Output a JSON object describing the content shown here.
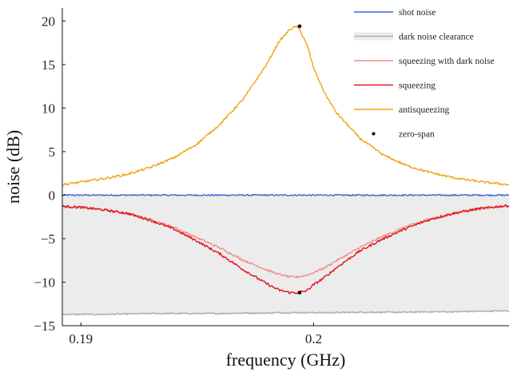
{
  "chart_data": {
    "type": "line",
    "xlabel": "frequency (GHz)",
    "ylabel": "noise (dB)",
    "xlim": [
      0.1892,
      0.2084
    ],
    "ylim": [
      -15,
      21.5
    ],
    "x_ticks": [
      0.19,
      0.2
    ],
    "x_tick_labels": [
      "0.19",
      "0.2"
    ],
    "y_ticks": [
      -15,
      -10,
      -5,
      0,
      5,
      10,
      15,
      20
    ],
    "y_tick_labels": [
      "−15",
      "−10",
      "−5",
      "0",
      "5",
      "10",
      "15",
      "20"
    ],
    "grid": false,
    "legend_position": "top-right",
    "x": [
      0.1892,
      0.19,
      0.191,
      0.192,
      0.193,
      0.194,
      0.195,
      0.196,
      0.197,
      0.198,
      0.1985,
      0.199,
      0.1993,
      0.1995,
      0.1997,
      0.2,
      0.2005,
      0.201,
      0.202,
      0.203,
      0.204,
      0.205,
      0.206,
      0.207,
      0.208,
      0.2084
    ],
    "series": [
      {
        "name": "shot noise",
        "color": "#3a63d8",
        "values": [
          0.0,
          0.0,
          0.0,
          0.0,
          0.0,
          0.0,
          0.0,
          0.0,
          0.0,
          0.0,
          0.0,
          0.0,
          0.0,
          0.0,
          0.0,
          0.0,
          0.0,
          0.0,
          0.0,
          0.0,
          0.0,
          0.0,
          0.0,
          0.0,
          0.0,
          0.0
        ]
      },
      {
        "name": "dark noise clearance",
        "color": "#b2b2b2",
        "fill_color": "#ececec",
        "values": [
          -13.7,
          -13.7,
          -13.7,
          -13.65,
          -13.6,
          -13.6,
          -13.6,
          -13.6,
          -13.55,
          -13.55,
          -13.5,
          -13.5,
          -13.5,
          -13.5,
          -13.5,
          -13.5,
          -13.5,
          -13.5,
          -13.45,
          -13.45,
          -13.45,
          -13.4,
          -13.4,
          -13.35,
          -13.3,
          -13.3
        ]
      },
      {
        "name": "squeezing with dark noise",
        "color": "#f08f8f",
        "values": [
          -1.3,
          -1.4,
          -1.7,
          -2.1,
          -2.8,
          -3.7,
          -4.9,
          -6.1,
          -7.5,
          -8.6,
          -9.1,
          -9.4,
          -9.4,
          -9.3,
          -9.2,
          -8.9,
          -8.3,
          -7.5,
          -6.0,
          -4.7,
          -3.6,
          -2.7,
          -2.1,
          -1.6,
          -1.3,
          -1.2
        ]
      },
      {
        "name": "squeezing",
        "color": "#e3141b",
        "values": [
          -1.3,
          -1.4,
          -1.7,
          -2.1,
          -2.9,
          -3.9,
          -5.3,
          -6.8,
          -8.6,
          -10.2,
          -10.9,
          -11.2,
          -11.2,
          -11.1,
          -11.0,
          -10.3,
          -9.4,
          -8.3,
          -6.4,
          -5.0,
          -3.8,
          -2.8,
          -2.1,
          -1.6,
          -1.3,
          -1.2
        ]
      },
      {
        "name": "antisqueezing",
        "color": "#f2a413",
        "values": [
          1.2,
          1.5,
          1.9,
          2.4,
          3.2,
          4.3,
          5.9,
          8.2,
          11.1,
          15.1,
          17.6,
          19.1,
          19.4,
          18.5,
          17.4,
          14.6,
          11.6,
          9.4,
          6.5,
          4.6,
          3.4,
          2.6,
          2.0,
          1.6,
          1.3,
          1.2
        ]
      },
      {
        "name": "zero-span",
        "color": "#000000",
        "type": "scatter",
        "points": [
          [
            0.1994,
            19.4
          ],
          [
            0.1994,
            -11.2
          ]
        ]
      }
    ]
  }
}
